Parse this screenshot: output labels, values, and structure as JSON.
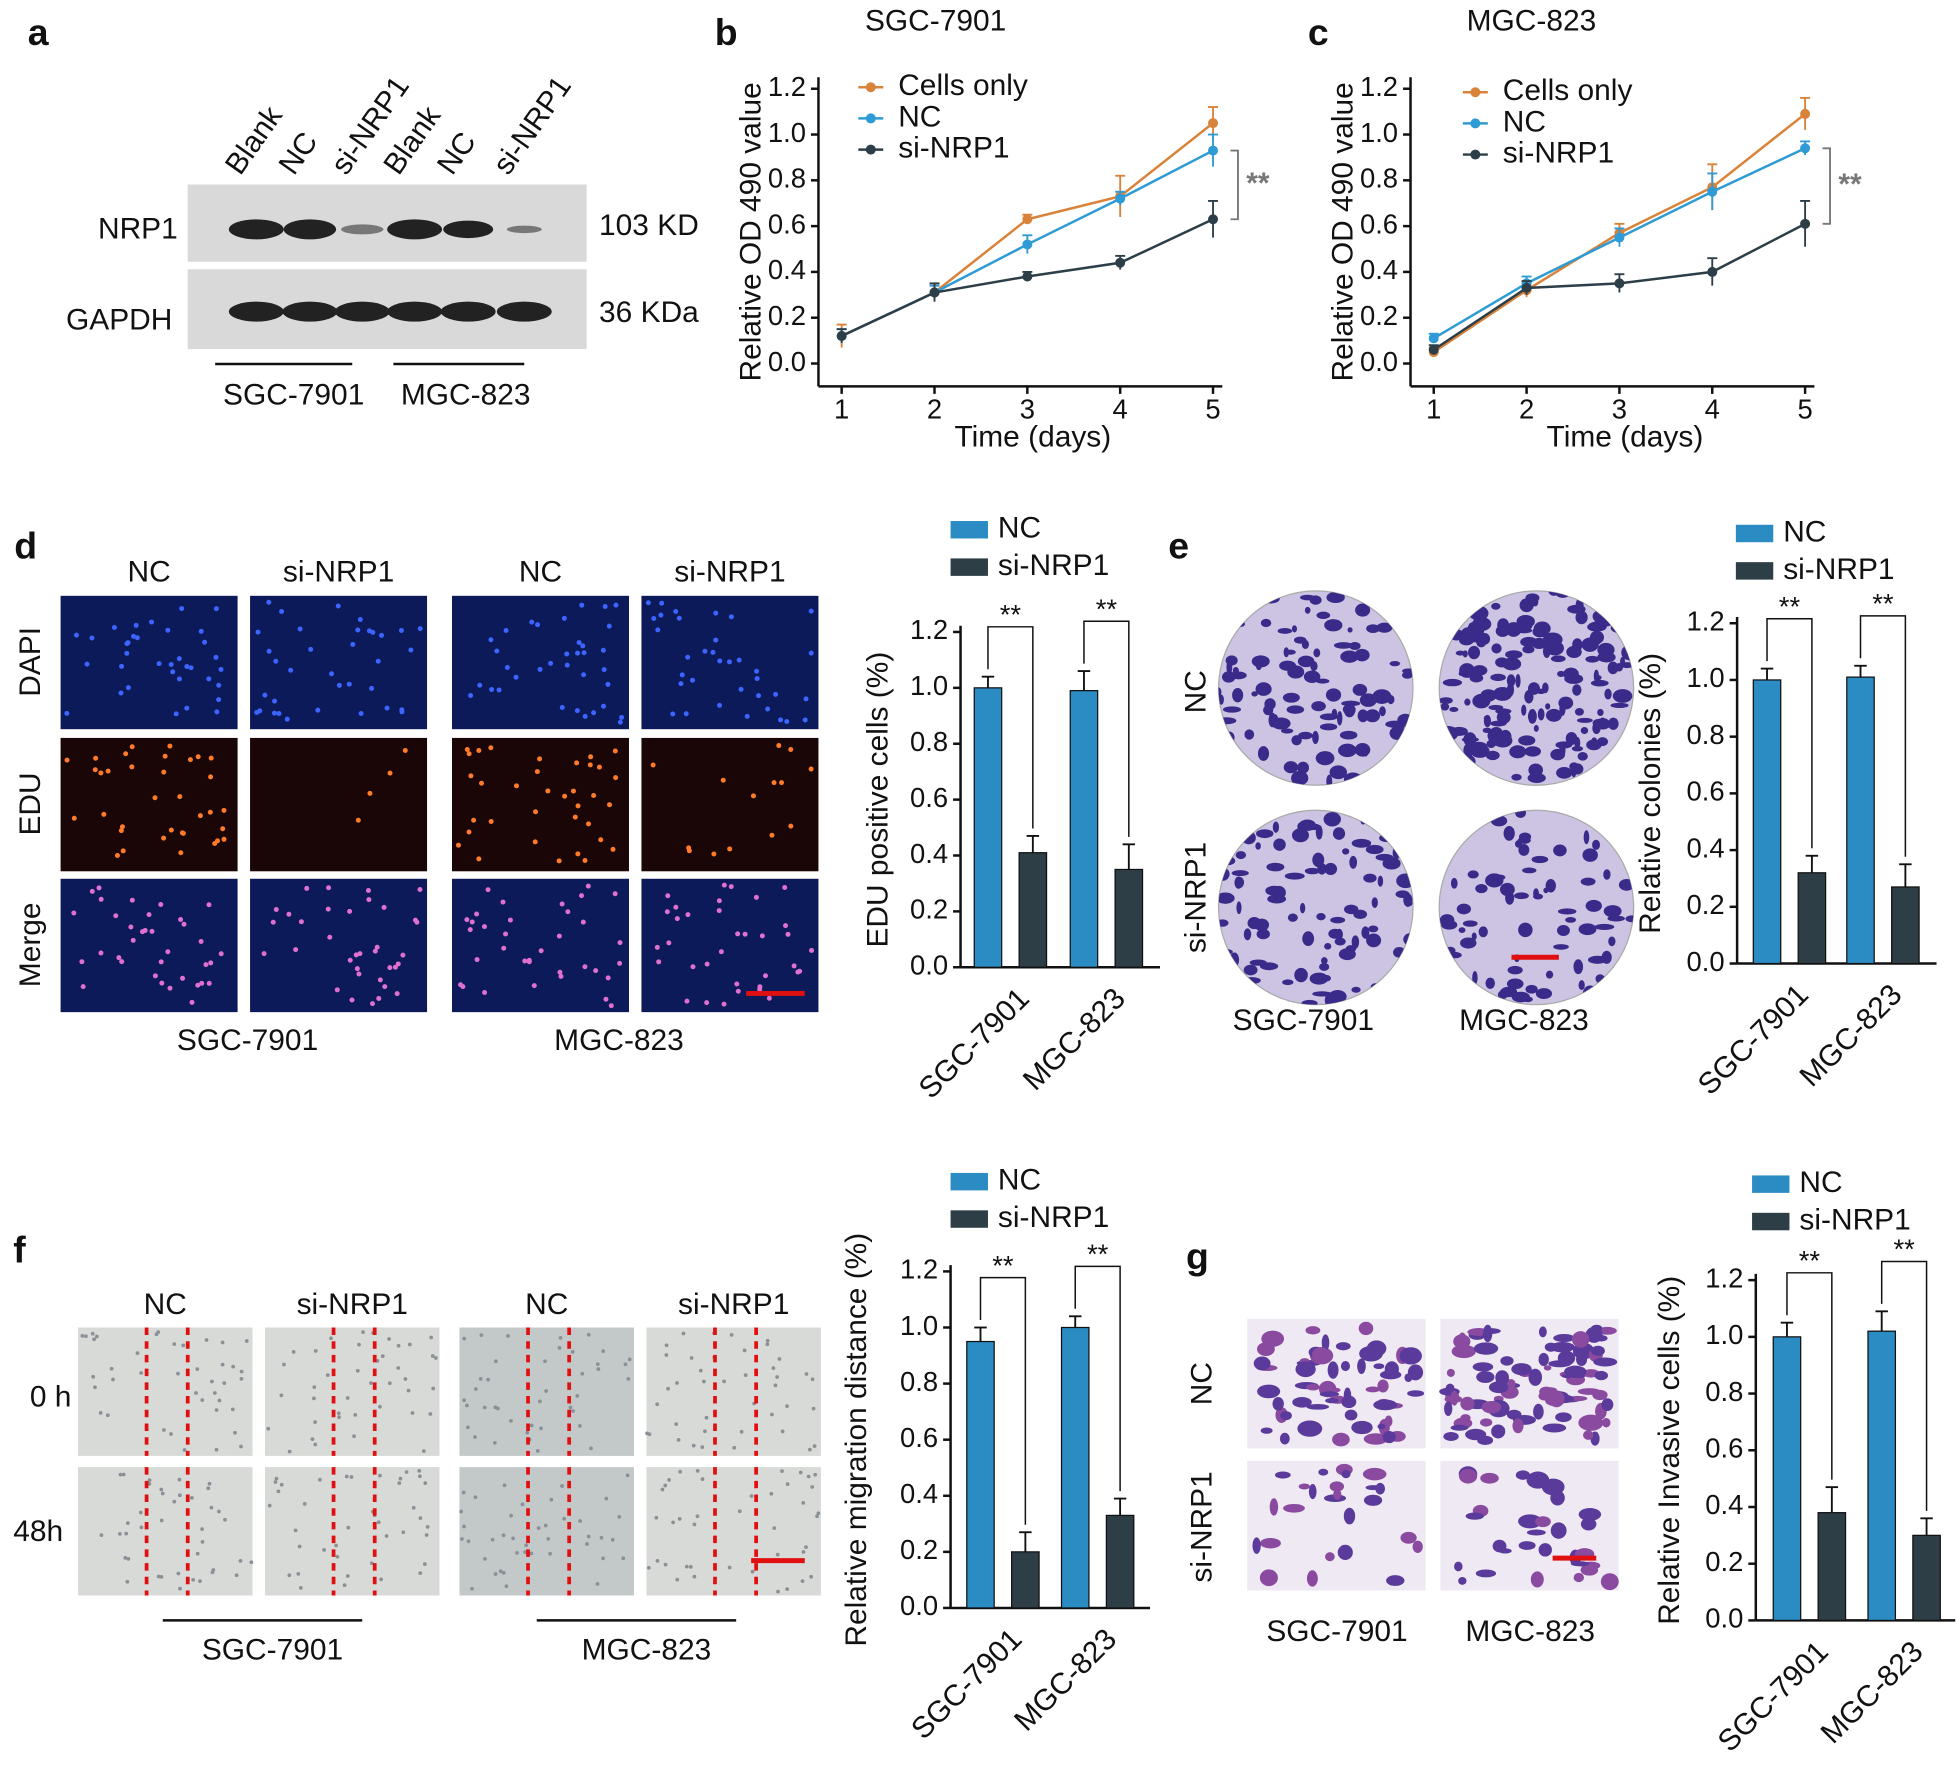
{
  "panel_labels": [
    "a",
    "b",
    "c",
    "d",
    "e",
    "f",
    "g"
  ],
  "western_blot": {
    "lanes": [
      "Blank",
      "NC",
      "si-NRP1",
      "Blank",
      "NC",
      "si-NRP1"
    ],
    "proteins": [
      "NRP1",
      "GAPDH"
    ],
    "sizes": [
      "103 KD",
      "36 KDa"
    ],
    "cell_lines": [
      "SGC-7901",
      "MGC-823"
    ]
  },
  "edu_images": {
    "columns": [
      "NC",
      "si-NRP1",
      "NC",
      "si-NRP1"
    ],
    "rows": [
      "DAPI",
      "EDU",
      "Merge"
    ],
    "cell_lines": [
      "SGC-7901",
      "MGC-823"
    ]
  },
  "colony_images": {
    "rows": [
      "NC",
      "si-NRP1"
    ],
    "cell_lines": [
      "SGC-7901",
      "MGC-823"
    ]
  },
  "wound_images": {
    "columns": [
      "NC",
      "si-NRP1",
      "NC",
      "si-NRP1"
    ],
    "rows": [
      "0 h",
      "48h"
    ],
    "cell_lines": [
      "SGC-7901",
      "MGC-823"
    ]
  },
  "invasion_images": {
    "rows": [
      "NC",
      "si-NRP1"
    ],
    "cell_lines": [
      "SGC-7901",
      "MGC-823"
    ]
  },
  "chart_data": [
    {
      "type": "line",
      "title": "SGC-7901",
      "x_label": "Time (days)",
      "y_label": "Relative OD 490 value",
      "x": [
        1,
        2,
        3,
        4,
        5
      ],
      "xlim": [
        0.75,
        5.1
      ],
      "xticks": [
        1,
        2,
        3,
        4,
        5
      ],
      "ylim": [
        -0.1,
        1.25
      ],
      "yticks": [
        {
          "value": 0,
          "label": "0.0"
        },
        0.2,
        0.4,
        0.6,
        0.8,
        {
          "value": 1,
          "label": "1.0"
        },
        1.2
      ],
      "annotation": "**",
      "series": [
        {
          "name": "Cells only",
          "color": "#d9823a",
          "values": [
            0.12,
            0.31,
            0.63,
            0.73,
            1.05
          ],
          "errors": [
            0.05,
            0.03,
            0.02,
            0.09,
            0.07
          ]
        },
        {
          "name": "NC",
          "color": "#2e9bd4",
          "values": [
            0.12,
            0.31,
            0.52,
            0.72,
            0.93
          ],
          "errors": [
            0.03,
            0.03,
            0.04,
            0.03,
            0.07
          ]
        },
        {
          "name": "si-NRP1",
          "color": "#2c3e48",
          "values": [
            0.12,
            0.31,
            0.38,
            0.44,
            0.63
          ],
          "errors": [
            0.03,
            0.04,
            0.02,
            0.03,
            0.08
          ]
        }
      ]
    },
    {
      "type": "line",
      "title": "MGC-823",
      "x_label": "Time (days)",
      "y_label": "Relative OD 490 value",
      "x": [
        1,
        2,
        3,
        4,
        5
      ],
      "xlim": [
        0.75,
        5.1
      ],
      "xticks": [
        1,
        2,
        3,
        4,
        5
      ],
      "ylim": [
        -0.1,
        1.25
      ],
      "yticks": [
        {
          "value": 0,
          "label": "0.0"
        },
        0.2,
        0.4,
        0.6,
        0.8,
        {
          "value": 1,
          "label": "1.0"
        },
        1.2
      ],
      "annotation": "**",
      "series": [
        {
          "name": "Cells only",
          "color": "#d9823a",
          "values": [
            0.05,
            0.32,
            0.57,
            0.77,
            1.09
          ],
          "errors": [
            0.02,
            0.03,
            0.04,
            0.1,
            0.07
          ]
        },
        {
          "name": "NC",
          "color": "#2e9bd4",
          "values": [
            0.11,
            0.35,
            0.55,
            0.75,
            0.94
          ],
          "errors": [
            0.02,
            0.03,
            0.04,
            0.08,
            0.03
          ]
        },
        {
          "name": "si-NRP1",
          "color": "#2c3e48",
          "values": [
            0.06,
            0.33,
            0.35,
            0.4,
            0.61
          ],
          "errors": [
            0.02,
            0.03,
            0.04,
            0.06,
            0.1
          ]
        }
      ]
    },
    {
      "type": "bar",
      "y_label": "EDU positive cells (%)",
      "categories": [
        "SGC-7901",
        "MGC-823"
      ],
      "ylim": [
        0,
        1.2
      ],
      "yticks": [
        {
          "value": 0,
          "label": "0.0"
        },
        0.2,
        0.4,
        0.6,
        0.8,
        {
          "value": 1,
          "label": "1.0"
        },
        1.2
      ],
      "annotations": [
        "**",
        "**"
      ],
      "series": [
        {
          "name": "NC",
          "color": "#2b8cc4",
          "values": [
            1.0,
            0.99
          ],
          "errors": [
            0.04,
            0.07
          ]
        },
        {
          "name": "si-NRP1",
          "color": "#2d3e46",
          "values": [
            0.41,
            0.35
          ],
          "errors": [
            0.06,
            0.09
          ]
        }
      ]
    },
    {
      "type": "bar",
      "y_label": "Relative colonies (%)",
      "categories": [
        "SGC-7901",
        "MGC-823"
      ],
      "ylim": [
        0,
        1.2
      ],
      "yticks": [
        {
          "value": 0,
          "label": "0.0"
        },
        0.2,
        0.4,
        0.6,
        0.8,
        {
          "value": 1,
          "label": "1.0"
        },
        1.2
      ],
      "annotations": [
        "**",
        "**"
      ],
      "series": [
        {
          "name": "NC",
          "color": "#2b8cc4",
          "values": [
            1.0,
            1.01
          ],
          "errors": [
            0.04,
            0.04
          ]
        },
        {
          "name": "si-NRP1",
          "color": "#2d3e46",
          "values": [
            0.32,
            0.27
          ],
          "errors": [
            0.06,
            0.08
          ]
        }
      ]
    },
    {
      "type": "bar",
      "y_label": "Relative migration distance (%)",
      "categories": [
        "SGC-7901",
        "MGC-823"
      ],
      "ylim": [
        0,
        1.2
      ],
      "yticks": [
        {
          "value": 0,
          "label": "0.0"
        },
        0.2,
        0.4,
        0.6,
        0.8,
        {
          "value": 1,
          "label": "1.0"
        },
        1.2
      ],
      "annotations": [
        "**",
        "**"
      ],
      "series": [
        {
          "name": "NC",
          "color": "#2b8cc4",
          "values": [
            0.95,
            1.0
          ],
          "errors": [
            0.05,
            0.04
          ]
        },
        {
          "name": "si-NRP1",
          "color": "#2d3e46",
          "values": [
            0.2,
            0.33
          ],
          "errors": [
            0.07,
            0.06
          ]
        }
      ]
    },
    {
      "type": "bar",
      "y_label": "Relative Invasive cells (%)",
      "categories": [
        "SGC-7901",
        "MGC-823"
      ],
      "ylim": [
        0,
        1.2
      ],
      "yticks": [
        {
          "value": 0,
          "label": "0.0"
        },
        0.2,
        0.4,
        0.6,
        0.8,
        {
          "value": 1,
          "label": "1.0"
        },
        1.2
      ],
      "annotations": [
        "**",
        "**"
      ],
      "series": [
        {
          "name": "NC",
          "color": "#2b8cc4",
          "values": [
            1.0,
            1.02
          ],
          "errors": [
            0.05,
            0.07
          ]
        },
        {
          "name": "si-NRP1",
          "color": "#2d3e46",
          "values": [
            0.38,
            0.3
          ],
          "errors": [
            0.09,
            0.06
          ]
        }
      ]
    }
  ]
}
